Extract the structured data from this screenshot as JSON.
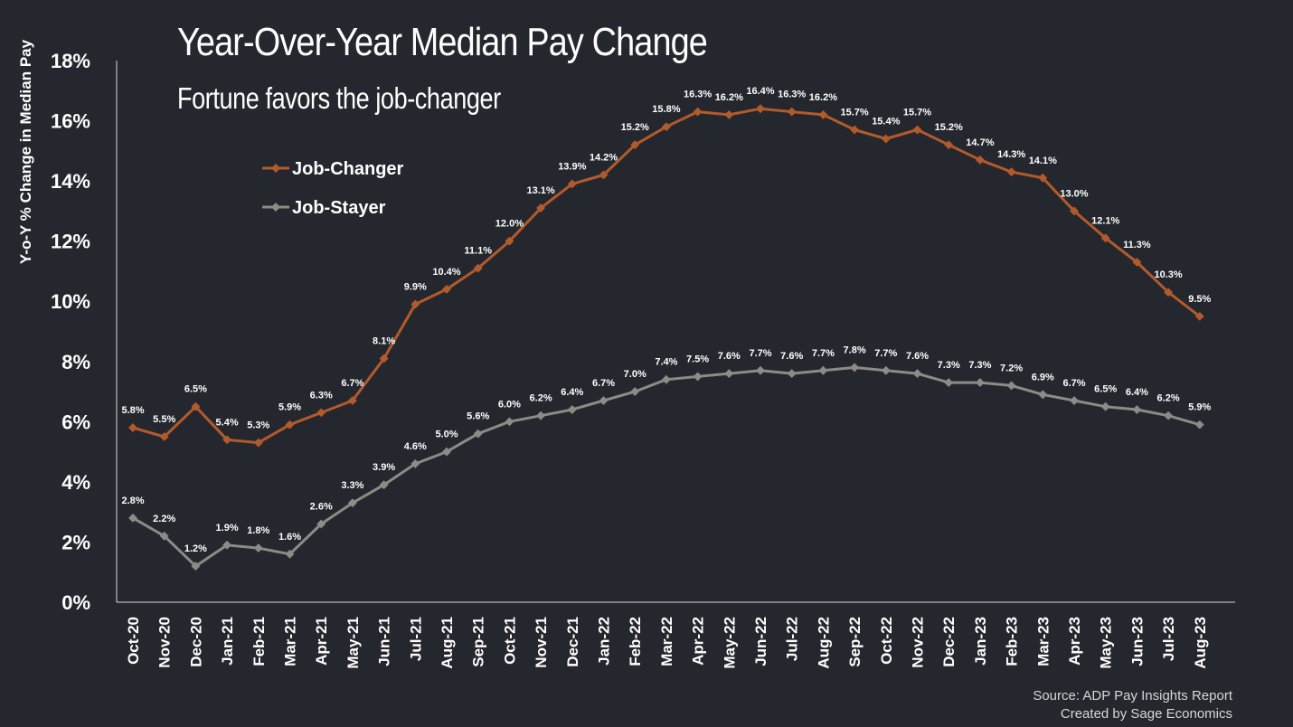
{
  "chart_data": {
    "type": "line",
    "title": "Year-Over-Year Median Pay Change",
    "subtitle": "Fortune favors the job-changer",
    "ylabel": "Y-o-Y % Change in Median Pay",
    "xlabel": "",
    "ylim": [
      0,
      18
    ],
    "yticks": [
      "0%",
      "2%",
      "4%",
      "6%",
      "8%",
      "10%",
      "12%",
      "14%",
      "16%",
      "18%"
    ],
    "grid": false,
    "legend_position": "upper-left",
    "categories": [
      "Oct-20",
      "Nov-20",
      "Dec-20",
      "Jan-21",
      "Feb-21",
      "Mar-21",
      "Apr-21",
      "May-21",
      "Jun-21",
      "Jul-21",
      "Aug-21",
      "Sep-21",
      "Oct-21",
      "Nov-21",
      "Dec-21",
      "Jan-22",
      "Feb-22",
      "Mar-22",
      "Apr-22",
      "May-22",
      "Jun-22",
      "Jul-22",
      "Aug-22",
      "Sep-22",
      "Oct-22",
      "Nov-22",
      "Dec-22",
      "Jan-23",
      "Feb-23",
      "Mar-23",
      "Apr-23",
      "May-23",
      "Jun-23",
      "Jul-23",
      "Aug-23"
    ],
    "series": [
      {
        "name": "Job-Changer",
        "color": "#b35a2c",
        "values": [
          5.8,
          5.5,
          6.5,
          5.4,
          5.3,
          5.9,
          6.3,
          6.7,
          8.1,
          9.9,
          10.4,
          11.1,
          12.0,
          13.1,
          13.9,
          14.2,
          15.2,
          15.8,
          16.3,
          16.2,
          16.4,
          16.3,
          16.2,
          15.7,
          15.4,
          15.7,
          15.2,
          14.7,
          14.3,
          14.1,
          13.0,
          12.1,
          11.3,
          10.3,
          9.5
        ]
      },
      {
        "name": "Job-Stayer",
        "color": "#8c8b86",
        "values": [
          2.8,
          2.2,
          1.2,
          1.9,
          1.8,
          1.6,
          2.6,
          3.3,
          3.9,
          4.6,
          5.0,
          5.6,
          6.0,
          6.2,
          6.4,
          6.7,
          7.0,
          7.4,
          7.5,
          7.6,
          7.7,
          7.6,
          7.7,
          7.8,
          7.7,
          7.6,
          7.3,
          7.3,
          7.2,
          6.9,
          6.7,
          6.5,
          6.4,
          6.2,
          5.9
        ]
      }
    ]
  },
  "footer": {
    "source": "Source: ADP Pay Insights Report",
    "credit": "Created by Sage Economics"
  }
}
